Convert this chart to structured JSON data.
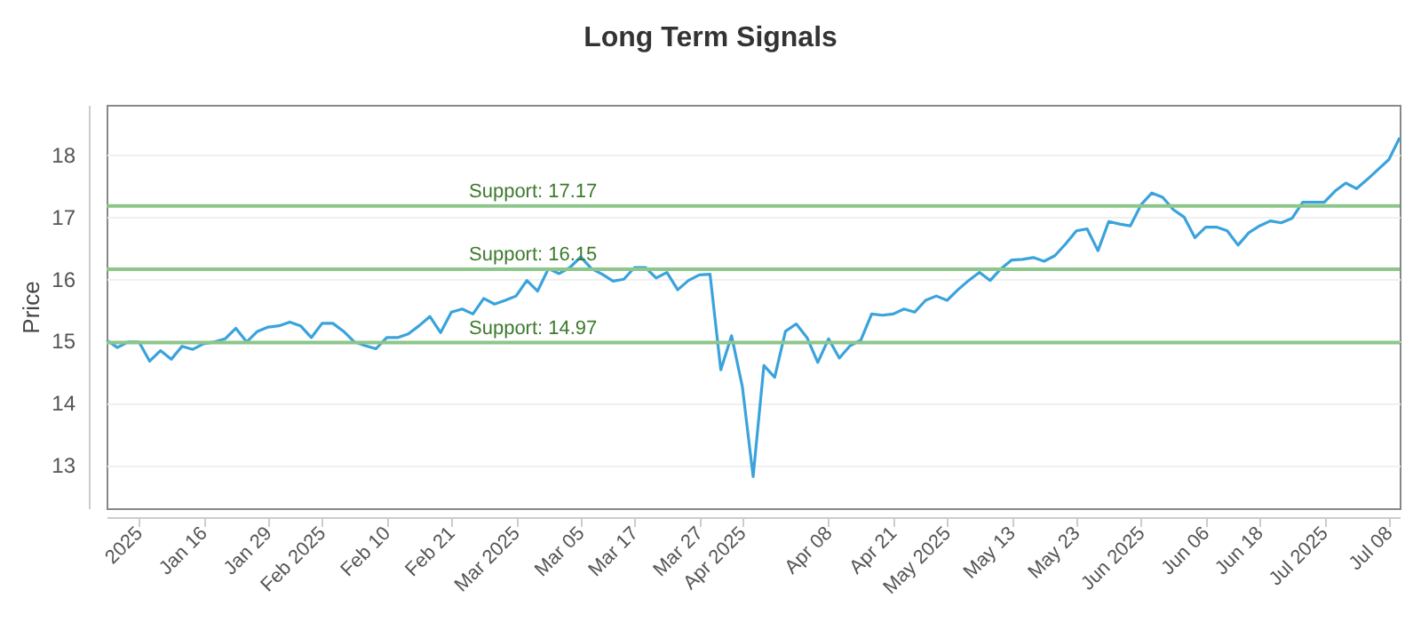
{
  "chart_data": {
    "type": "line",
    "title": "Long Term Signals",
    "ylabel": "Price",
    "categories": [
      null,
      null,
      null,
      "2025",
      null,
      null,
      null,
      null,
      null,
      "Jan 16",
      null,
      null,
      null,
      null,
      null,
      "Jan 29",
      null,
      null,
      null,
      null,
      "Feb 2025",
      null,
      null,
      null,
      null,
      null,
      "Feb 10",
      null,
      null,
      null,
      null,
      null,
      "Feb 21",
      null,
      null,
      null,
      null,
      null,
      "Mar 2025",
      null,
      null,
      null,
      null,
      null,
      "Mar 05",
      null,
      null,
      null,
      null,
      "Mar 17",
      null,
      null,
      null,
      null,
      null,
      "Mar 27",
      null,
      null,
      null,
      "Apr 2025",
      null,
      null,
      null,
      null,
      null,
      null,
      null,
      "Apr 08",
      null,
      null,
      null,
      null,
      null,
      "Apr 21",
      null,
      null,
      null,
      null,
      "May 2025",
      null,
      null,
      null,
      null,
      null,
      "May 13",
      null,
      null,
      null,
      null,
      null,
      "May 23",
      null,
      null,
      null,
      null,
      null,
      "Jun 2025",
      null,
      null,
      null,
      null,
      null,
      "Jun 06",
      null,
      null,
      null,
      null,
      "Jun 18",
      null,
      null,
      null,
      null,
      null,
      "Jul 2025",
      null,
      null,
      null,
      null,
      null,
      "Jul 08",
      null
    ],
    "series": [
      {
        "color": "#3aa3dc",
        "values": [
          15.01,
          14.89,
          14.98,
          14.98,
          14.67,
          14.84,
          14.7,
          14.91,
          14.86,
          14.95,
          14.98,
          15.03,
          15.2,
          14.98,
          15.15,
          15.22,
          15.24,
          15.3,
          15.24,
          15.05,
          15.28,
          15.28,
          15.15,
          14.98,
          14.92,
          14.87,
          15.05,
          15.05,
          15.11,
          15.24,
          15.39,
          15.13,
          15.46,
          15.51,
          15.43,
          15.68,
          15.59,
          15.65,
          15.72,
          15.97,
          15.8,
          16.16,
          16.08,
          16.18,
          16.35,
          16.16,
          16.07,
          15.96,
          15.99,
          16.18,
          16.18,
          16.01,
          16.1,
          15.82,
          15.97,
          16.06,
          16.07,
          14.53,
          15.08,
          14.26,
          12.81,
          14.6,
          14.41,
          15.15,
          15.27,
          15.05,
          14.65,
          15.03,
          14.72,
          14.92,
          15.01,
          15.43,
          15.41,
          15.43,
          15.51,
          15.46,
          15.65,
          15.72,
          15.65,
          15.82,
          15.97,
          16.1,
          15.97,
          16.16,
          16.3,
          16.31,
          16.34,
          16.28,
          16.37,
          16.56,
          16.77,
          16.8,
          16.45,
          16.92,
          16.88,
          16.85,
          17.19,
          17.38,
          17.31,
          17.11,
          16.99,
          16.66,
          16.83,
          16.83,
          16.77,
          16.54,
          16.74,
          16.85,
          16.93,
          16.9,
          16.97,
          17.23,
          17.23,
          17.23,
          17.41,
          17.54,
          17.45,
          17.6,
          17.76,
          17.92,
          18.27
        ]
      }
    ],
    "ylim": [
      12.3,
      18.8
    ],
    "yticks": [
      13,
      14,
      15,
      16,
      17,
      18
    ],
    "grid": "y",
    "marker": "none",
    "line_style": "solid",
    "ref_lines": [
      {
        "axis": "y",
        "value": 17.17,
        "label": "Support: 17.17",
        "color": "#8cc68a"
      },
      {
        "axis": "y",
        "value": 16.15,
        "label": "Support: 16.15",
        "color": "#8cc68a"
      },
      {
        "axis": "y",
        "value": 14.97,
        "label": "Support: 14.97",
        "color": "#8cc68a"
      }
    ]
  }
}
